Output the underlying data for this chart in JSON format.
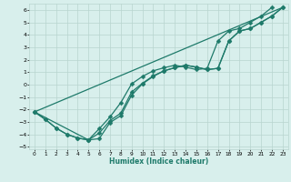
{
  "xlabel": "Humidex (Indice chaleur)",
  "xlim": [
    -0.5,
    23.5
  ],
  "ylim": [
    -5.2,
    6.5
  ],
  "xticks": [
    0,
    1,
    2,
    3,
    4,
    5,
    6,
    7,
    8,
    9,
    10,
    11,
    12,
    13,
    14,
    15,
    16,
    17,
    18,
    19,
    20,
    21,
    22,
    23
  ],
  "yticks": [
    -5,
    -4,
    -3,
    -2,
    -1,
    0,
    1,
    2,
    3,
    4,
    5,
    6
  ],
  "bg_color": "#d8efec",
  "grid_color": "#b8d4cf",
  "line_color": "#1e7a6a",
  "curves": [
    {
      "x": [
        0,
        1,
        2,
        3,
        4,
        5,
        6,
        7,
        8,
        9,
        10,
        11,
        12,
        13,
        14,
        15,
        16,
        17,
        18,
        19,
        20,
        21,
        22,
        23
      ],
      "y": [
        -2.2,
        -2.8,
        -3.5,
        -4.0,
        -4.3,
        -4.45,
        -4.35,
        -3.05,
        -2.5,
        -0.85,
        0.05,
        0.65,
        1.1,
        1.35,
        1.55,
        1.4,
        1.2,
        1.3,
        3.5,
        4.3,
        4.5,
        5.0,
        5.5,
        6.2
      ]
    },
    {
      "x": [
        0,
        1,
        2,
        3,
        4,
        5,
        6,
        7,
        8,
        9,
        10,
        11,
        12,
        13,
        14,
        15,
        16,
        17,
        18,
        19,
        20,
        21,
        22,
        23
      ],
      "y": [
        -2.2,
        -2.8,
        -3.5,
        -4.0,
        -4.3,
        -4.45,
        -3.9,
        -2.9,
        -2.3,
        -0.6,
        0.1,
        0.7,
        1.1,
        1.35,
        1.55,
        1.4,
        1.2,
        1.3,
        3.5,
        4.3,
        4.5,
        5.0,
        5.5,
        6.2
      ]
    },
    {
      "x": [
        0,
        23
      ],
      "y": [
        -2.2,
        6.2
      ]
    },
    {
      "x": [
        0,
        5,
        6,
        7,
        8,
        9,
        10,
        11,
        12,
        13,
        14,
        15,
        16,
        17,
        18,
        19,
        20,
        21,
        22,
        23
      ],
      "y": [
        -2.2,
        -4.45,
        -3.55,
        -2.6,
        -1.45,
        0.05,
        0.65,
        1.1,
        1.35,
        1.55,
        1.4,
        1.2,
        1.3,
        3.5,
        4.3,
        4.5,
        5.0,
        5.5,
        6.2,
        6.2
      ]
    }
  ],
  "marker": "D",
  "marker_size": 2.5,
  "linewidth": 0.9
}
